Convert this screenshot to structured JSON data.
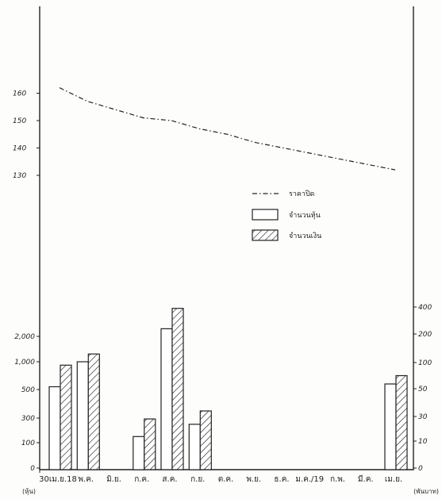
{
  "chart_data": {
    "type": "bar",
    "categories": [
      "30เม.ย.18",
      "พ.ค.",
      "มิ.ย.",
      "ก.ค.",
      "ส.ค.",
      "ก.ย.",
      "ต.ค.",
      "พ.ย.",
      "ธ.ค.",
      "ม.ค./19",
      "ก.พ.",
      "มี.ค.",
      "เม.ย."
    ],
    "top_panel": {
      "ticks": [
        130,
        140,
        150,
        160
      ],
      "ylim": [
        120,
        170
      ],
      "series": [
        {
          "name": "ราคาปิด",
          "style": "dash-dot",
          "x": [
            0,
            1,
            2,
            3,
            4,
            5,
            6,
            7,
            8,
            9,
            10,
            11,
            12
          ],
          "values": [
            162,
            157,
            154,
            151,
            150,
            147,
            145,
            142,
            140,
            138,
            136,
            134,
            132
          ]
        }
      ]
    },
    "bottom_panel": {
      "left_ticks": [
        "0",
        "100",
        "300",
        "500",
        "1,000",
        "2,000"
      ],
      "right_ticks": [
        "0",
        "10",
        "30",
        "50",
        "100",
        "200",
        "400"
      ],
      "left_unit": "(หุ้น)",
      "right_unit": "(พันบาท)",
      "series": [
        {
          "name": "จำนวนหุ้น",
          "style": "plain",
          "values": [
            550,
            1000,
            null,
            150,
            2300,
            250,
            null,
            null,
            null,
            null,
            null,
            null,
            600
          ]
        },
        {
          "name": "จำนวนเงิน",
          "style": "hatched",
          "values": [
            95,
            130,
            null,
            28,
            390,
            34,
            null,
            null,
            null,
            null,
            null,
            null,
            75
          ]
        }
      ]
    }
  }
}
